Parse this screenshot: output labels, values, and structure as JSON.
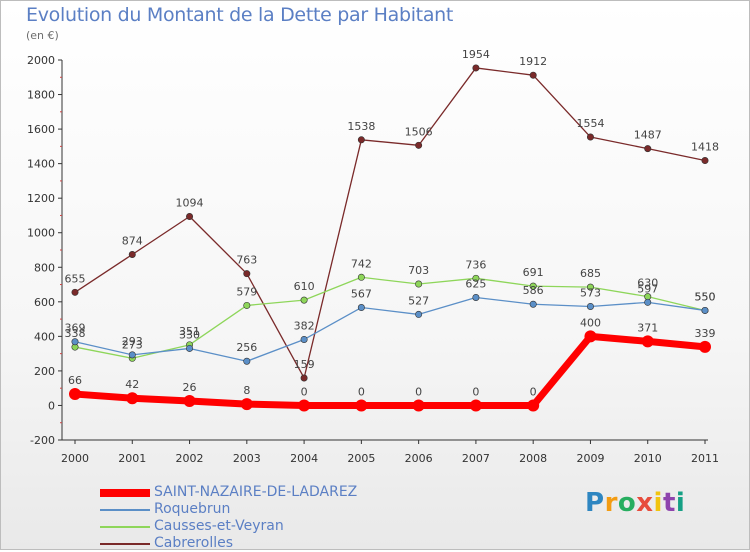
{
  "title": "Evolution du Montant de la Dette par Habitant",
  "subtitle": "(en €)",
  "logo": {
    "letters": [
      "P",
      "r",
      "o",
      "x",
      "i",
      "t",
      "i"
    ],
    "colors": [
      "#2e86c1",
      "#f39c12",
      "#27ae60",
      "#e74c3c",
      "#f1c40f",
      "#8e44ad",
      "#16a085"
    ]
  },
  "chart_data": {
    "type": "line",
    "title": "Evolution du Montant de la Dette par Habitant",
    "xlabel": "",
    "ylabel": "(en €)",
    "x": [
      "2000",
      "2001",
      "2002",
      "2003",
      "2004",
      "2005",
      "2006",
      "2007",
      "2008",
      "2009",
      "2010",
      "2011"
    ],
    "ylim": [
      -200,
      2000
    ],
    "yticks": [
      "-200",
      "0",
      "200",
      "400",
      "600",
      "800",
      "1000",
      "1200",
      "1400",
      "1600",
      "1800",
      "2000"
    ],
    "grid": false,
    "legend_position": "bottom-left",
    "series": [
      {
        "name": "SAINT-NAZAIRE-DE-LADAREZ",
        "color": "#ff0000",
        "values": [
          66,
          42,
          26,
          8,
          0,
          0,
          0,
          0,
          0,
          400,
          371,
          339
        ]
      },
      {
        "name": "Roquebrun",
        "color": "#5b8fc7",
        "values": [
          369,
          293,
          330,
          256,
          382,
          567,
          527,
          625,
          586,
          573,
          597,
          550
        ]
      },
      {
        "name": "Causses-et-Veyran",
        "color": "#8ed65a",
        "values": [
          338,
          273,
          351,
          579,
          610,
          742,
          703,
          736,
          691,
          685,
          630,
          550
        ]
      },
      {
        "name": "Cabrerolles",
        "color": "#7a2a2a",
        "values": [
          655,
          874,
          1094,
          763,
          159,
          1538,
          1506,
          1954,
          1912,
          1554,
          1487,
          1418
        ]
      }
    ]
  }
}
